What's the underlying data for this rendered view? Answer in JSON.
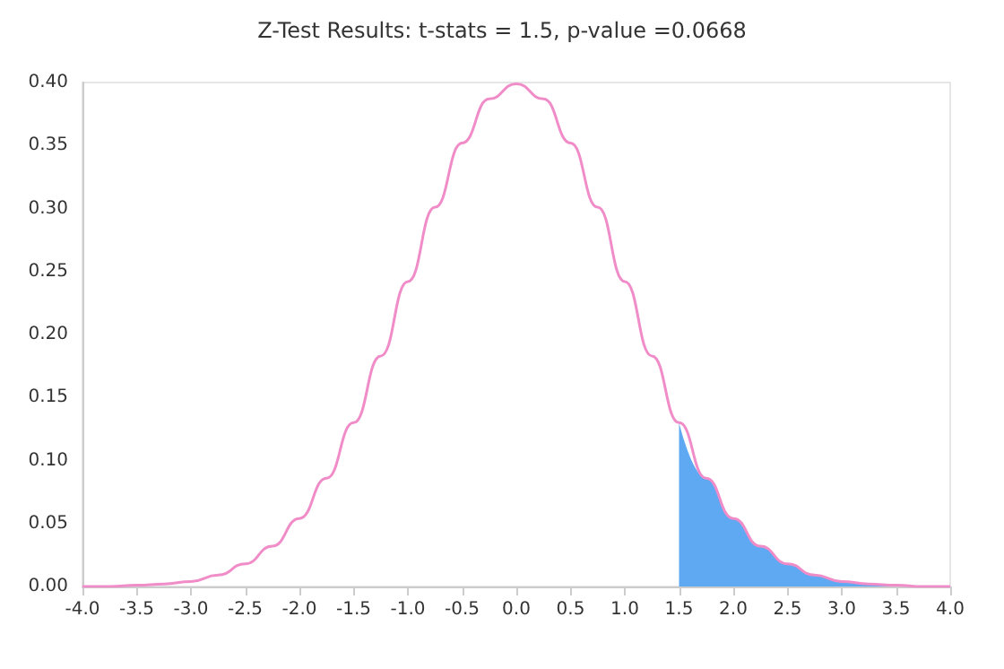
{
  "chart_data": {
    "type": "line",
    "title": "Z-Test Results: t-stats = 1.5, p-value =0.0668",
    "series": [
      {
        "color": "#f08cc8",
        "x": [
          -4,
          -3.75,
          -3.5,
          -3.25,
          -3,
          -2.75,
          -2.5,
          -2.25,
          -2,
          -1.75,
          -1.5,
          -1.25,
          -1,
          -0.75,
          -0.5,
          -0.25,
          0,
          0.25,
          0.5,
          0.75,
          1,
          1.25,
          1.5,
          1.75,
          2,
          2.25,
          2.5,
          2.75,
          3,
          3.25,
          3.5,
          3.75,
          4
        ],
        "values": [
          0.0,
          0.0,
          0.001,
          0.002,
          0.004,
          0.009,
          0.018,
          0.032,
          0.054,
          0.086,
          0.13,
          0.183,
          0.242,
          0.301,
          0.352,
          0.387,
          0.399,
          0.387,
          0.352,
          0.301,
          0.242,
          0.183,
          0.13,
          0.086,
          0.054,
          0.032,
          0.018,
          0.009,
          0.004,
          0.002,
          0.001,
          0.0,
          0.0
        ]
      },
      {
        "type": "area",
        "color": "#5fa8f2",
        "x": [
          1.5,
          1.75,
          2,
          2.25,
          2.5,
          2.75,
          3,
          3.25,
          3.5,
          3.75,
          4
        ],
        "values": [
          0.13,
          0.086,
          0.054,
          0.032,
          0.018,
          0.009,
          0.004,
          0.002,
          0.001,
          0.0,
          0.0
        ]
      }
    ],
    "xlim": [
      -4,
      4
    ],
    "ylim": [
      0,
      0.4
    ],
    "xticks": [
      {
        "value": -4,
        "label": "-4.0"
      },
      {
        "value": -3.5,
        "label": "-3.5"
      },
      {
        "value": -3,
        "label": "-3.0"
      },
      {
        "value": -2.5,
        "label": "-2.5"
      },
      {
        "value": -2,
        "label": "-2.0"
      },
      {
        "value": -1.5,
        "label": "-1.5"
      },
      {
        "value": -1,
        "label": "-1.0"
      },
      {
        "value": -0.5,
        "label": "-0.5"
      },
      {
        "value": 0,
        "label": "0.0"
      },
      {
        "value": 0.5,
        "label": "0.5"
      },
      {
        "value": 1,
        "label": "1.0"
      },
      {
        "value": 1.5,
        "label": "1.5"
      },
      {
        "value": 2,
        "label": "2.0"
      },
      {
        "value": 2.5,
        "label": "2.5"
      },
      {
        "value": 3,
        "label": "3.0"
      },
      {
        "value": 3.5,
        "label": "3.5"
      },
      {
        "value": 4,
        "label": "4.0"
      }
    ],
    "yticks": [
      {
        "value": 0,
        "label": "0.00"
      },
      {
        "value": 0.05,
        "label": "0.05"
      },
      {
        "value": 0.1,
        "label": "0.10"
      },
      {
        "value": 0.15,
        "label": "0.15"
      },
      {
        "value": 0.2,
        "label": "0.20"
      },
      {
        "value": 0.25,
        "label": "0.25"
      },
      {
        "value": 0.3,
        "label": "0.30"
      },
      {
        "value": 0.35,
        "label": "0.35"
      },
      {
        "value": 0.4,
        "label": "0.40"
      }
    ],
    "grid": false,
    "marker": "none",
    "line_style": "solid"
  }
}
